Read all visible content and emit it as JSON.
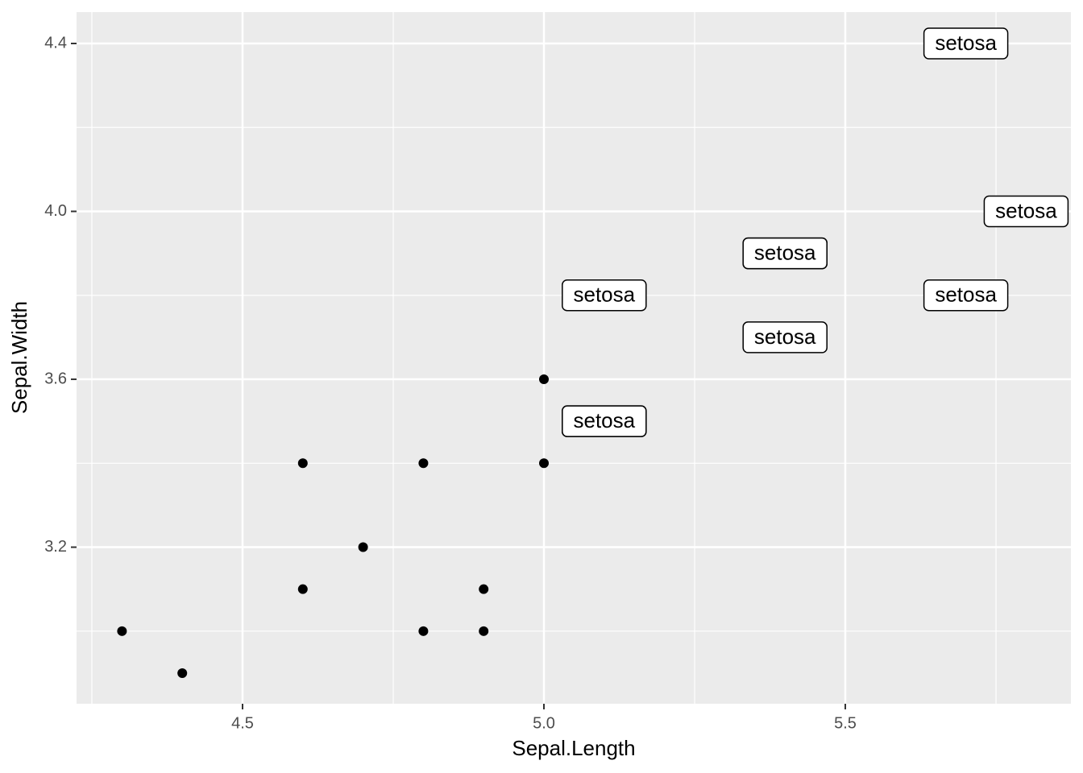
{
  "chart_data": {
    "type": "scatter",
    "x_label": "Sepal.Length",
    "y_label": "Sepal.Width",
    "points": {
      "color": "#000000",
      "x": [
        4.9,
        4.7,
        4.6,
        5.0,
        4.6,
        5.0,
        4.4,
        4.9,
        4.8,
        4.8,
        4.3
      ],
      "y": [
        3.0,
        3.2,
        3.1,
        3.6,
        3.4,
        3.4,
        2.9,
        3.1,
        3.4,
        3.0,
        3.0
      ]
    },
    "labels": {
      "x": [
        5.1,
        5.4,
        5.4,
        5.8,
        5.7,
        5.4,
        5.1,
        5.7,
        5.1
      ],
      "y": [
        3.5,
        3.9,
        3.7,
        4.0,
        4.4,
        3.9,
        3.5,
        3.8,
        3.8
      ],
      "text": [
        "setosa",
        "setosa",
        "setosa",
        "setosa",
        "setosa",
        "setosa",
        "setosa",
        "setosa",
        "setosa"
      ]
    },
    "xlim": [
      4.2246,
      5.8743
    ],
    "ylim": [
      2.827,
      4.4748
    ],
    "xticks": [
      4.5,
      {
        "value": 5.0,
        "label": "5.0"
      },
      5.5
    ],
    "yticks": [
      3.2,
      3.6,
      {
        "value": 4.0,
        "label": "4.0"
      },
      4.4
    ],
    "x_minor": [
      4.25,
      4.75,
      5.25,
      5.75
    ],
    "y_minor": [
      3.0,
      3.4,
      3.8,
      4.2
    ],
    "grid": true
  }
}
